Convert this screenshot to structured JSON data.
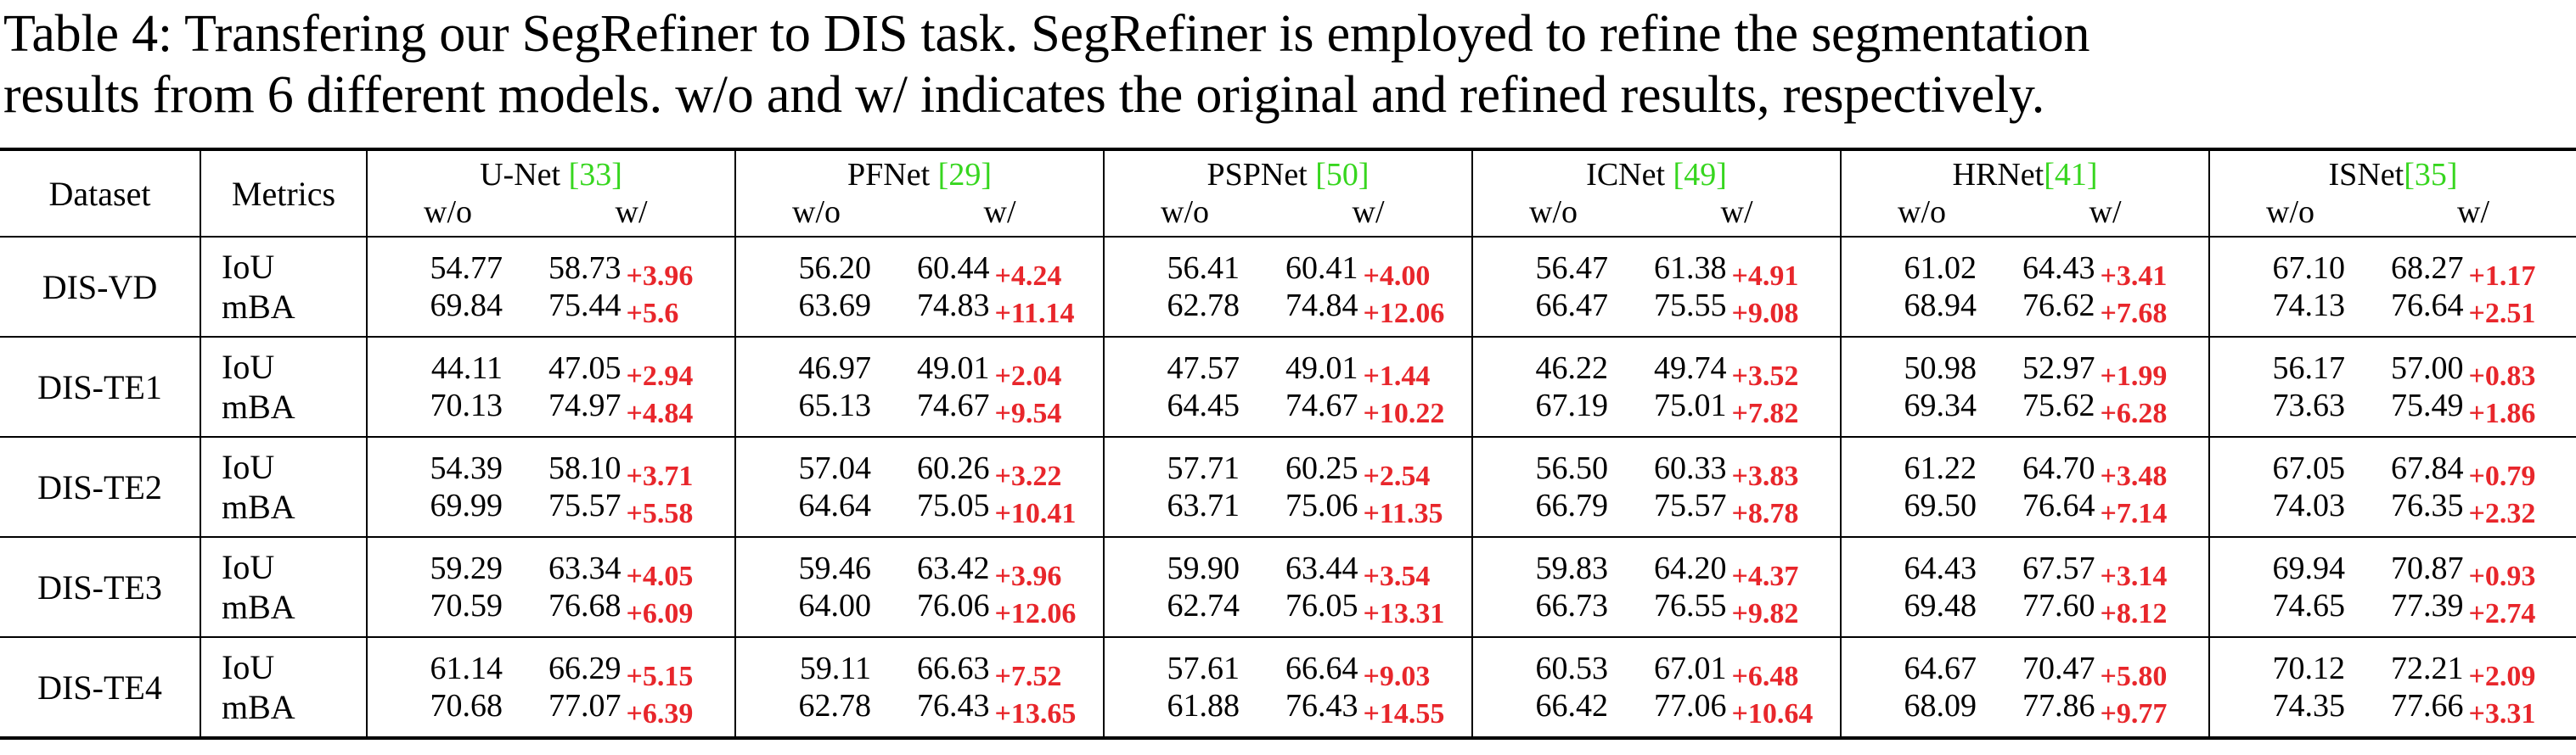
{
  "caption": {
    "line1": "Table 4: Transfering our SegRefiner to DIS task. SegRefiner is employed to refine the segmentation",
    "line2": "results from 6 different models. w/o and w/ indicates the original and refined results, respectively."
  },
  "header": {
    "dataset": "Dataset",
    "metrics": "Metrics",
    "wo": "w/o",
    "w": "w/",
    "models": [
      {
        "name": "U-Net ",
        "cite": "[33]"
      },
      {
        "name": "PFNet ",
        "cite": "[29]"
      },
      {
        "name": "PSPNet ",
        "cite": "[50]"
      },
      {
        "name": "ICNet ",
        "cite": "[49]"
      },
      {
        "name": "HRNet",
        "cite": "[41]"
      },
      {
        "name": "ISNet",
        "cite": "[35]"
      }
    ]
  },
  "colors": {
    "delta": "#e8262b",
    "citation": "#37d61f"
  },
  "rows": [
    {
      "dataset": "DIS-VD",
      "metrics": [
        {
          "name": "IoU",
          "cells": [
            {
              "wo": "54.77",
              "w": "58.73",
              "delta": "+3.96"
            },
            {
              "wo": "56.20",
              "w": "60.44",
              "delta": "+4.24"
            },
            {
              "wo": "56.41",
              "w": "60.41",
              "delta": "+4.00"
            },
            {
              "wo": "56.47",
              "w": "61.38",
              "delta": "+4.91"
            },
            {
              "wo": "61.02",
              "w": "64.43",
              "delta": "+3.41"
            },
            {
              "wo": "67.10",
              "w": "68.27",
              "delta": "+1.17"
            }
          ]
        },
        {
          "name": "mBA",
          "cells": [
            {
              "wo": "69.84",
              "w": "75.44",
              "delta": "+5.6"
            },
            {
              "wo": "63.69",
              "w": "74.83",
              "delta": "+11.14"
            },
            {
              "wo": "62.78",
              "w": "74.84",
              "delta": "+12.06"
            },
            {
              "wo": "66.47",
              "w": "75.55",
              "delta": "+9.08"
            },
            {
              "wo": "68.94",
              "w": "76.62",
              "delta": "+7.68"
            },
            {
              "wo": "74.13",
              "w": "76.64",
              "delta": "+2.51"
            }
          ]
        }
      ]
    },
    {
      "dataset": "DIS-TE1",
      "metrics": [
        {
          "name": "IoU",
          "cells": [
            {
              "wo": "44.11",
              "w": "47.05",
              "delta": "+2.94"
            },
            {
              "wo": "46.97",
              "w": "49.01",
              "delta": "+2.04"
            },
            {
              "wo": "47.57",
              "w": "49.01",
              "delta": "+1.44"
            },
            {
              "wo": "46.22",
              "w": "49.74",
              "delta": "+3.52"
            },
            {
              "wo": "50.98",
              "w": "52.97",
              "delta": "+1.99"
            },
            {
              "wo": "56.17",
              "w": "57.00",
              "delta": "+0.83"
            }
          ]
        },
        {
          "name": "mBA",
          "cells": [
            {
              "wo": "70.13",
              "w": "74.97",
              "delta": "+4.84"
            },
            {
              "wo": "65.13",
              "w": "74.67",
              "delta": "+9.54"
            },
            {
              "wo": "64.45",
              "w": "74.67",
              "delta": "+10.22"
            },
            {
              "wo": "67.19",
              "w": "75.01",
              "delta": "+7.82"
            },
            {
              "wo": "69.34",
              "w": "75.62",
              "delta": "+6.28"
            },
            {
              "wo": "73.63",
              "w": "75.49",
              "delta": "+1.86"
            }
          ]
        }
      ]
    },
    {
      "dataset": "DIS-TE2",
      "metrics": [
        {
          "name": "IoU",
          "cells": [
            {
              "wo": "54.39",
              "w": "58.10",
              "delta": "+3.71"
            },
            {
              "wo": "57.04",
              "w": "60.26",
              "delta": "+3.22"
            },
            {
              "wo": "57.71",
              "w": "60.25",
              "delta": "+2.54"
            },
            {
              "wo": "56.50",
              "w": "60.33",
              "delta": "+3.83"
            },
            {
              "wo": "61.22",
              "w": "64.70",
              "delta": "+3.48"
            },
            {
              "wo": "67.05",
              "w": "67.84",
              "delta": "+0.79"
            }
          ]
        },
        {
          "name": "mBA",
          "cells": [
            {
              "wo": "69.99",
              "w": "75.57",
              "delta": "+5.58"
            },
            {
              "wo": "64.64",
              "w": "75.05",
              "delta": "+10.41"
            },
            {
              "wo": "63.71",
              "w": "75.06",
              "delta": "+11.35"
            },
            {
              "wo": "66.79",
              "w": "75.57",
              "delta": "+8.78"
            },
            {
              "wo": "69.50",
              "w": "76.64",
              "delta": "+7.14"
            },
            {
              "wo": "74.03",
              "w": "76.35",
              "delta": "+2.32"
            }
          ]
        }
      ]
    },
    {
      "dataset": "DIS-TE3",
      "metrics": [
        {
          "name": "IoU",
          "cells": [
            {
              "wo": "59.29",
              "w": "63.34",
              "delta": "+4.05"
            },
            {
              "wo": "59.46",
              "w": "63.42",
              "delta": "+3.96"
            },
            {
              "wo": "59.90",
              "w": "63.44",
              "delta": "+3.54"
            },
            {
              "wo": "59.83",
              "w": "64.20",
              "delta": "+4.37"
            },
            {
              "wo": "64.43",
              "w": "67.57",
              "delta": "+3.14"
            },
            {
              "wo": "69.94",
              "w": "70.87",
              "delta": "+0.93"
            }
          ]
        },
        {
          "name": "mBA",
          "cells": [
            {
              "wo": "70.59",
              "w": "76.68",
              "delta": "+6.09"
            },
            {
              "wo": "64.00",
              "w": "76.06",
              "delta": "+12.06"
            },
            {
              "wo": "62.74",
              "w": "76.05",
              "delta": "+13.31"
            },
            {
              "wo": "66.73",
              "w": "76.55",
              "delta": "+9.82"
            },
            {
              "wo": "69.48",
              "w": "77.60",
              "delta": "+8.12"
            },
            {
              "wo": "74.65",
              "w": "77.39",
              "delta": "+2.74"
            }
          ]
        }
      ]
    },
    {
      "dataset": "DIS-TE4",
      "metrics": [
        {
          "name": "IoU",
          "cells": [
            {
              "wo": "61.14",
              "w": "66.29",
              "delta": "+5.15"
            },
            {
              "wo": "59.11",
              "w": "66.63",
              "delta": "+7.52"
            },
            {
              "wo": "57.61",
              "w": "66.64",
              "delta": "+9.03"
            },
            {
              "wo": "60.53",
              "w": "67.01",
              "delta": "+6.48"
            },
            {
              "wo": "64.67",
              "w": "70.47",
              "delta": "+5.80"
            },
            {
              "wo": "70.12",
              "w": "72.21",
              "delta": "+2.09"
            }
          ]
        },
        {
          "name": "mBA",
          "cells": [
            {
              "wo": "70.68",
              "w": "77.07",
              "delta": "+6.39"
            },
            {
              "wo": "62.78",
              "w": "76.43",
              "delta": "+13.65"
            },
            {
              "wo": "61.88",
              "w": "76.43",
              "delta": "+14.55"
            },
            {
              "wo": "66.42",
              "w": "77.06",
              "delta": "+10.64"
            },
            {
              "wo": "68.09",
              "w": "77.86",
              "delta": "+9.77"
            },
            {
              "wo": "74.35",
              "w": "77.66",
              "delta": "+3.31"
            }
          ]
        }
      ]
    }
  ]
}
